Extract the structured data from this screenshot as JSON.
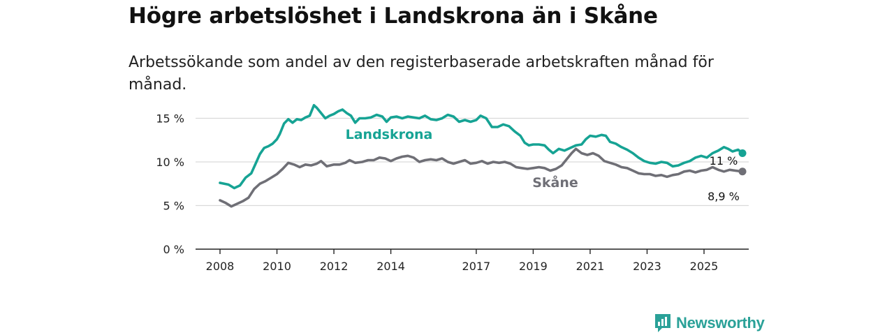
{
  "title": "Högre arbetslöshet i Landskrona än i Skåne",
  "subtitle": "Arbetssökande som andel av den registerbaserade arbetskraften månad för månad.",
  "brand": {
    "name": "Newsworthy",
    "icon": "bar-chart-logo-icon",
    "color": "#2aa198"
  },
  "chart_data": {
    "type": "line",
    "title": "Högre arbetslöshet i Landskrona än i Skåne",
    "xlabel": "",
    "ylabel": "",
    "xlim": [
      2008,
      2026.6
    ],
    "ylim": [
      0,
      16
    ],
    "y_ticks": [
      0,
      5,
      10,
      15
    ],
    "y_tick_labels": [
      "0 %",
      "5 %",
      "10 %",
      "15 %"
    ],
    "x_ticks": [
      2008,
      2010,
      2012,
      2014,
      2017,
      2019,
      2021,
      2023,
      2025
    ],
    "x_tick_labels": [
      "2008",
      "2010",
      "2012",
      "2014",
      "2017",
      "2019",
      "2021",
      "2023",
      "2025"
    ],
    "grid": true,
    "series": [
      {
        "name": "Landskrona",
        "color": "#16a394",
        "end_label": "11 %",
        "points": [
          [
            2008.0,
            7.6
          ],
          [
            2008.3,
            7.4
          ],
          [
            2008.5,
            7.0
          ],
          [
            2008.7,
            7.3
          ],
          [
            2008.9,
            8.2
          ],
          [
            2009.1,
            8.7
          ],
          [
            2009.25,
            9.8
          ],
          [
            2009.4,
            10.9
          ],
          [
            2009.55,
            11.6
          ],
          [
            2009.7,
            11.8
          ],
          [
            2009.85,
            12.1
          ],
          [
            2010.0,
            12.6
          ],
          [
            2010.1,
            13.2
          ],
          [
            2010.25,
            14.4
          ],
          [
            2010.4,
            14.9
          ],
          [
            2010.55,
            14.5
          ],
          [
            2010.7,
            14.9
          ],
          [
            2010.85,
            14.8
          ],
          [
            2011.0,
            15.1
          ],
          [
            2011.15,
            15.3
          ],
          [
            2011.3,
            16.5
          ],
          [
            2011.4,
            16.2
          ],
          [
            2011.55,
            15.6
          ],
          [
            2011.7,
            15.0
          ],
          [
            2011.85,
            15.3
          ],
          [
            2012.0,
            15.5
          ],
          [
            2012.15,
            15.8
          ],
          [
            2012.3,
            16.0
          ],
          [
            2012.45,
            15.6
          ],
          [
            2012.6,
            15.3
          ],
          [
            2012.75,
            14.5
          ],
          [
            2012.9,
            15.0
          ],
          [
            2013.1,
            15.0
          ],
          [
            2013.3,
            15.1
          ],
          [
            2013.5,
            15.4
          ],
          [
            2013.7,
            15.2
          ],
          [
            2013.85,
            14.6
          ],
          [
            2014.0,
            15.1
          ],
          [
            2014.2,
            15.2
          ],
          [
            2014.4,
            15.0
          ],
          [
            2014.6,
            15.2
          ],
          [
            2014.8,
            15.1
          ],
          [
            2015.0,
            15.0
          ],
          [
            2015.2,
            15.3
          ],
          [
            2015.4,
            14.9
          ],
          [
            2015.6,
            14.8
          ],
          [
            2015.8,
            15.0
          ],
          [
            2016.0,
            15.4
          ],
          [
            2016.2,
            15.2
          ],
          [
            2016.4,
            14.6
          ],
          [
            2016.6,
            14.8
          ],
          [
            2016.8,
            14.6
          ],
          [
            2017.0,
            14.8
          ],
          [
            2017.15,
            15.3
          ],
          [
            2017.35,
            15.0
          ],
          [
            2017.55,
            14.0
          ],
          [
            2017.75,
            14.0
          ],
          [
            2017.95,
            14.3
          ],
          [
            2018.15,
            14.1
          ],
          [
            2018.35,
            13.5
          ],
          [
            2018.55,
            13.0
          ],
          [
            2018.7,
            12.2
          ],
          [
            2018.85,
            11.9
          ],
          [
            2019.0,
            12.0
          ],
          [
            2019.2,
            12.0
          ],
          [
            2019.4,
            11.9
          ],
          [
            2019.55,
            11.4
          ],
          [
            2019.7,
            11.0
          ],
          [
            2019.9,
            11.5
          ],
          [
            2020.1,
            11.3
          ],
          [
            2020.3,
            11.6
          ],
          [
            2020.5,
            11.9
          ],
          [
            2020.7,
            12.0
          ],
          [
            2020.85,
            12.6
          ],
          [
            2021.0,
            13.0
          ],
          [
            2021.2,
            12.9
          ],
          [
            2021.4,
            13.1
          ],
          [
            2021.55,
            13.0
          ],
          [
            2021.7,
            12.3
          ],
          [
            2021.9,
            12.1
          ],
          [
            2022.1,
            11.7
          ],
          [
            2022.3,
            11.4
          ],
          [
            2022.5,
            11.0
          ],
          [
            2022.7,
            10.5
          ],
          [
            2022.9,
            10.1
          ],
          [
            2023.1,
            9.9
          ],
          [
            2023.3,
            9.8
          ],
          [
            2023.5,
            10.0
          ],
          [
            2023.7,
            9.9
          ],
          [
            2023.9,
            9.5
          ],
          [
            2024.1,
            9.6
          ],
          [
            2024.3,
            9.9
          ],
          [
            2024.5,
            10.1
          ],
          [
            2024.7,
            10.5
          ],
          [
            2024.9,
            10.7
          ],
          [
            2025.1,
            10.5
          ],
          [
            2025.3,
            11.0
          ],
          [
            2025.5,
            11.3
          ],
          [
            2025.7,
            11.7
          ],
          [
            2025.85,
            11.5
          ],
          [
            2026.0,
            11.2
          ],
          [
            2026.2,
            11.4
          ],
          [
            2026.35,
            11.0
          ]
        ]
      },
      {
        "name": "Skåne",
        "color": "#6f6f76",
        "end_label": "8,9 %",
        "points": [
          [
            2008.0,
            5.6
          ],
          [
            2008.2,
            5.3
          ],
          [
            2008.4,
            4.9
          ],
          [
            2008.6,
            5.2
          ],
          [
            2008.8,
            5.5
          ],
          [
            2009.0,
            5.9
          ],
          [
            2009.2,
            6.9
          ],
          [
            2009.4,
            7.5
          ],
          [
            2009.6,
            7.8
          ],
          [
            2009.8,
            8.2
          ],
          [
            2010.0,
            8.6
          ],
          [
            2010.2,
            9.2
          ],
          [
            2010.4,
            9.9
          ],
          [
            2010.6,
            9.7
          ],
          [
            2010.8,
            9.4
          ],
          [
            2011.0,
            9.7
          ],
          [
            2011.2,
            9.6
          ],
          [
            2011.4,
            9.8
          ],
          [
            2011.55,
            10.1
          ],
          [
            2011.75,
            9.5
          ],
          [
            2012.0,
            9.7
          ],
          [
            2012.2,
            9.7
          ],
          [
            2012.4,
            9.9
          ],
          [
            2012.55,
            10.2
          ],
          [
            2012.75,
            9.9
          ],
          [
            2013.0,
            10.0
          ],
          [
            2013.2,
            10.2
          ],
          [
            2013.4,
            10.2
          ],
          [
            2013.6,
            10.5
          ],
          [
            2013.8,
            10.4
          ],
          [
            2014.0,
            10.1
          ],
          [
            2014.2,
            10.4
          ],
          [
            2014.4,
            10.6
          ],
          [
            2014.6,
            10.7
          ],
          [
            2014.8,
            10.5
          ],
          [
            2015.0,
            10.0
          ],
          [
            2015.2,
            10.2
          ],
          [
            2015.4,
            10.3
          ],
          [
            2015.6,
            10.2
          ],
          [
            2015.8,
            10.4
          ],
          [
            2016.0,
            10.0
          ],
          [
            2016.2,
            9.8
          ],
          [
            2016.4,
            10.0
          ],
          [
            2016.6,
            10.2
          ],
          [
            2016.8,
            9.8
          ],
          [
            2017.0,
            9.9
          ],
          [
            2017.2,
            10.1
          ],
          [
            2017.4,
            9.8
          ],
          [
            2017.6,
            10.0
          ],
          [
            2017.8,
            9.9
          ],
          [
            2018.0,
            10.0
          ],
          [
            2018.2,
            9.8
          ],
          [
            2018.4,
            9.4
          ],
          [
            2018.6,
            9.3
          ],
          [
            2018.8,
            9.2
          ],
          [
            2019.0,
            9.3
          ],
          [
            2019.2,
            9.4
          ],
          [
            2019.4,
            9.3
          ],
          [
            2019.6,
            9.0
          ],
          [
            2019.8,
            9.2
          ],
          [
            2020.0,
            9.6
          ],
          [
            2020.2,
            10.4
          ],
          [
            2020.35,
            11.0
          ],
          [
            2020.5,
            11.5
          ],
          [
            2020.7,
            11.0
          ],
          [
            2020.9,
            10.8
          ],
          [
            2021.1,
            11.0
          ],
          [
            2021.3,
            10.7
          ],
          [
            2021.5,
            10.1
          ],
          [
            2021.7,
            9.9
          ],
          [
            2021.9,
            9.7
          ],
          [
            2022.1,
            9.4
          ],
          [
            2022.3,
            9.3
          ],
          [
            2022.5,
            9.0
          ],
          [
            2022.7,
            8.7
          ],
          [
            2022.9,
            8.6
          ],
          [
            2023.1,
            8.6
          ],
          [
            2023.3,
            8.4
          ],
          [
            2023.5,
            8.5
          ],
          [
            2023.7,
            8.3
          ],
          [
            2023.9,
            8.5
          ],
          [
            2024.1,
            8.6
          ],
          [
            2024.3,
            8.9
          ],
          [
            2024.5,
            9.0
          ],
          [
            2024.7,
            8.8
          ],
          [
            2024.9,
            9.0
          ],
          [
            2025.1,
            9.1
          ],
          [
            2025.3,
            9.4
          ],
          [
            2025.5,
            9.1
          ],
          [
            2025.7,
            8.9
          ],
          [
            2025.9,
            9.1
          ],
          [
            2026.1,
            9.0
          ],
          [
            2026.35,
            8.9
          ]
        ]
      }
    ]
  }
}
